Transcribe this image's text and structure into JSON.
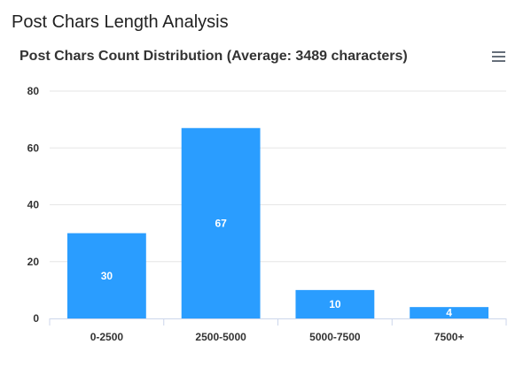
{
  "page": {
    "title": "Post Chars Length Analysis"
  },
  "chart_menu": {
    "icon": "hamburger-menu-icon"
  },
  "colors": {
    "bar": "#2a9dff",
    "grid": "#e6e6e6",
    "axis": "#ccd6eb",
    "text": "#333333"
  },
  "chart_data": {
    "type": "bar",
    "title": "Post Chars Count Distribution (Average: 3489 characters)",
    "xlabel": "",
    "ylabel": "",
    "categories": [
      "0-2500",
      "2500-5000",
      "5000-7500",
      "7500+"
    ],
    "values": [
      30,
      67,
      10,
      4
    ],
    "ylim": [
      0,
      80
    ],
    "yticks": [
      0,
      20,
      40,
      60,
      80
    ],
    "data_labels": [
      "30",
      "67",
      "10",
      "4"
    ],
    "grid": true,
    "legend": "none"
  }
}
